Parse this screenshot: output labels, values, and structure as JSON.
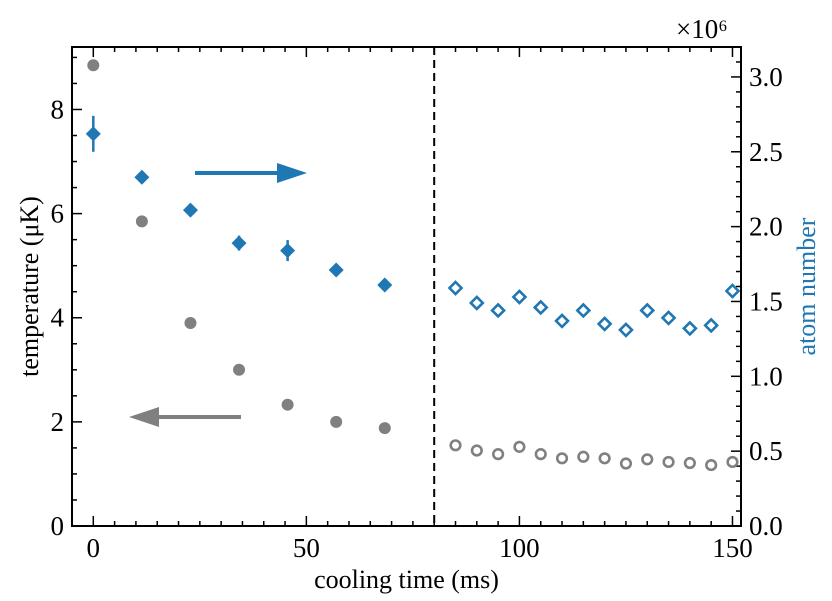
{
  "chart_data": {
    "type": "scatter",
    "xlabel": "cooling time (ms)",
    "ylabel_left": "temperature (μK)",
    "ylabel_right": "atom number",
    "right_axis_multiplier": "×10⁶",
    "xlim": [
      -5,
      152
    ],
    "ylim_left": [
      0,
      9.2
    ],
    "ylim_right": [
      0,
      3.2
    ],
    "x_ticks": [
      0,
      50,
      100,
      150
    ],
    "y_ticks_left": [
      0,
      2,
      4,
      6,
      8
    ],
    "y_ticks_right": [
      "0.0",
      "0.5",
      "1.0",
      "1.5",
      "2.0",
      "2.5",
      "3.0"
    ],
    "vline_x": 80,
    "colors": {
      "temperature": "#808080",
      "atom_number": "#1f77b4"
    },
    "series": [
      {
        "name": "temperature (filled)",
        "axis": "left",
        "marker": "circle",
        "filled": true,
        "x": [
          0,
          11.4,
          22.8,
          34.2,
          45.6,
          57.0,
          68.4
        ],
        "y": [
          8.85,
          5.85,
          3.9,
          3.0,
          2.33,
          2.0,
          1.88
        ]
      },
      {
        "name": "temperature (open)",
        "axis": "left",
        "marker": "circle",
        "filled": false,
        "x": [
          85,
          90,
          95,
          100,
          105,
          110,
          115,
          120,
          125,
          130,
          135,
          140,
          145,
          150
        ],
        "y": [
          1.55,
          1.45,
          1.38,
          1.52,
          1.38,
          1.3,
          1.33,
          1.3,
          1.2,
          1.28,
          1.23,
          1.21,
          1.17,
          1.23
        ]
      },
      {
        "name": "atom number (filled)",
        "axis": "right",
        "marker": "diamond",
        "filled": true,
        "x": [
          0,
          11.4,
          22.8,
          34.2,
          45.6,
          57.0,
          68.4
        ],
        "y": [
          2.62,
          2.33,
          2.11,
          1.89,
          1.84,
          1.71,
          1.61
        ],
        "yerr": [
          0.12,
          0.03,
          0.03,
          0.05,
          0.07,
          0.02,
          0.02
        ]
      },
      {
        "name": "atom number (open)",
        "axis": "right",
        "marker": "diamond",
        "filled": false,
        "x": [
          85,
          90,
          95,
          100,
          105,
          110,
          115,
          120,
          125,
          130,
          135,
          140,
          145,
          150
        ],
        "y": [
          1.59,
          1.49,
          1.44,
          1.53,
          1.46,
          1.37,
          1.44,
          1.35,
          1.31,
          1.44,
          1.39,
          1.32,
          1.34,
          1.57
        ]
      }
    ],
    "annotations": [
      {
        "type": "arrow",
        "direction": "right",
        "color": "atom_number",
        "meaning": "points to right axis"
      },
      {
        "type": "arrow",
        "direction": "left",
        "color": "temperature",
        "meaning": "points to left axis"
      }
    ]
  }
}
